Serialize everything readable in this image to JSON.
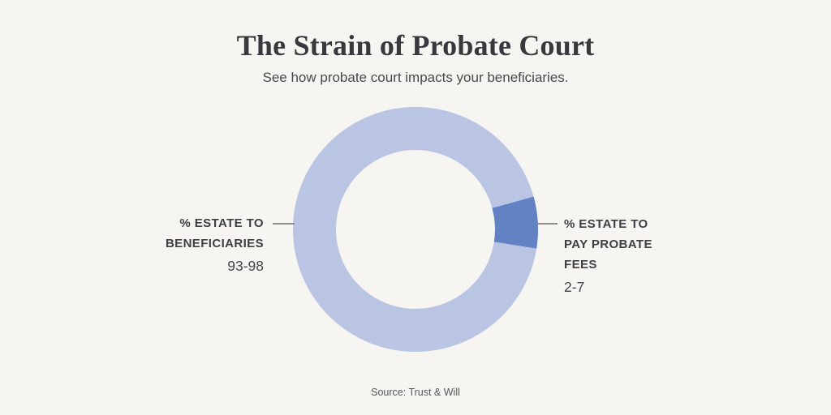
{
  "page": {
    "background": "#f7f5f2"
  },
  "chart_data": {
    "type": "donut",
    "title": "The Strain of Probate Court",
    "subtitle": "See how probate court impacts your beneficiaries.",
    "source": "Source: Trust & Will",
    "legend_position": "sides",
    "hole": true,
    "segments": [
      {
        "label": "% ESTATE TO BENEFICIARIES",
        "value_label": "93-98",
        "value_range": [
          93,
          98
        ],
        "color": "#b9c5e3",
        "side": "left"
      },
      {
        "label": "% ESTATE TO PAY PROBATE FEES",
        "value_label": "2-7",
        "value_range": [
          2,
          7
        ],
        "color": "#6282c3",
        "side": "right"
      }
    ],
    "drawn_geometry": {
      "fees_start_deg": -15.5,
      "fees_end_deg": 9
    },
    "leader_line_color": "#8e8e8e"
  }
}
